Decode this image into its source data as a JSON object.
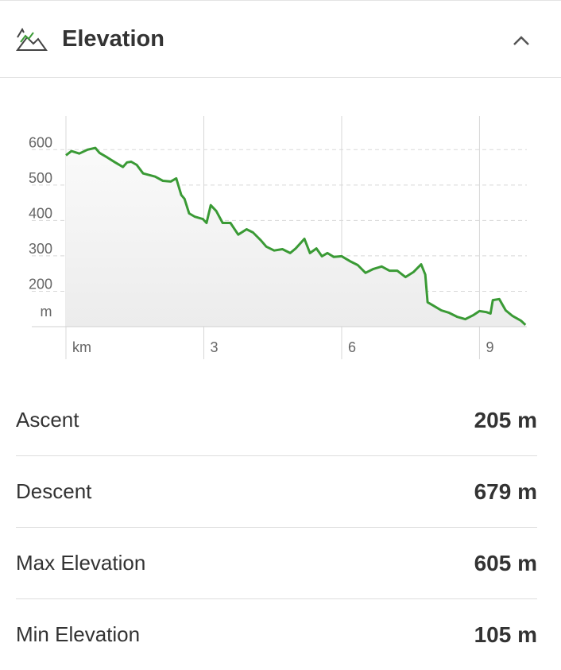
{
  "header": {
    "title": "Elevation"
  },
  "chart_data": {
    "type": "line",
    "x": [
      0,
      0.12,
      0.29,
      0.47,
      0.64,
      0.73,
      0.9,
      1.07,
      1.24,
      1.33,
      1.42,
      1.54,
      1.68,
      1.94,
      2.11,
      2.28,
      2.4,
      2.51,
      2.58,
      2.68,
      2.8,
      2.98,
      3.06,
      3.15,
      3.27,
      3.41,
      3.58,
      3.75,
      3.93,
      4.07,
      4.24,
      4.36,
      4.53,
      4.71,
      4.88,
      5.0,
      5.19,
      5.31,
      5.45,
      5.57,
      5.69,
      5.83,
      6.0,
      6.18,
      6.35,
      6.52,
      6.69,
      6.87,
      7.04,
      7.21,
      7.39,
      7.56,
      7.73,
      7.82,
      7.87,
      7.99,
      8.17,
      8.34,
      8.51,
      8.69,
      8.86,
      9.0,
      9.15,
      9.24,
      9.29,
      9.43,
      9.57,
      9.72,
      9.9,
      10.0
    ],
    "values": [
      584,
      596,
      589,
      600,
      605,
      591,
      578,
      564,
      551,
      564,
      566,
      557,
      533,
      524,
      512,
      510,
      519,
      472,
      461,
      420,
      411,
      404,
      393,
      443,
      427,
      393,
      393,
      360,
      375,
      366,
      344,
      326,
      315,
      319,
      308,
      321,
      348,
      308,
      321,
      299,
      308,
      297,
      299,
      285,
      274,
      252,
      263,
      270,
      258,
      258,
      240,
      254,
      276,
      247,
      169,
      160,
      146,
      139,
      128,
      121,
      132,
      144,
      141,
      137,
      175,
      178,
      146,
      130,
      117,
      105
    ],
    "color": "#3a9a35",
    "xlim": [
      0,
      10.03
    ],
    "ylim": [
      100,
      695
    ],
    "xticks": [
      {
        "value": 0,
        "label": "km"
      },
      3,
      6,
      9
    ],
    "yticks": [
      200,
      300,
      400,
      500,
      600
    ],
    "y_label": "m",
    "grid": true
  },
  "stats": [
    {
      "label": "Ascent",
      "value": "205 m"
    },
    {
      "label": "Descent",
      "value": "679 m"
    },
    {
      "label": "Max Elevation",
      "value": "605 m"
    },
    {
      "label": "Min Elevation",
      "value": "105 m"
    }
  ]
}
